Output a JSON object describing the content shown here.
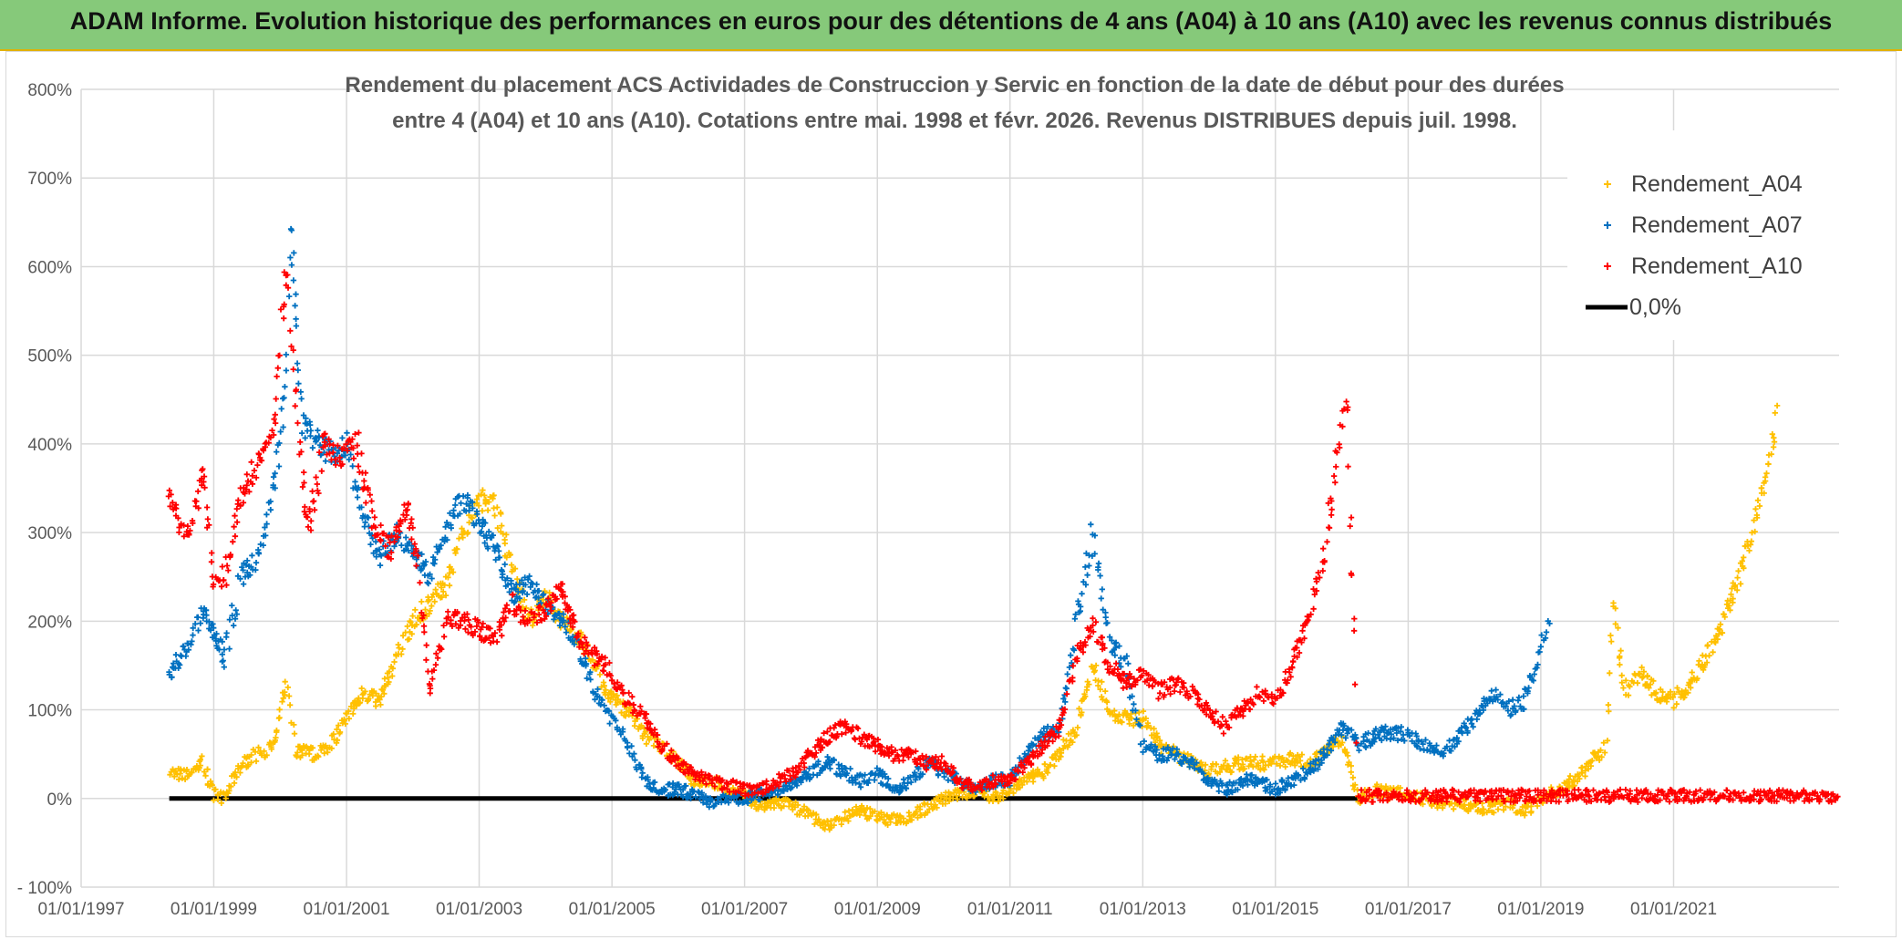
{
  "banner": {
    "title": "ADAM Informe. Evolution historique des performances en euros pour des détentions de 4 ans (A04) à 10 ans (A10) avec les revenus connus distribués"
  },
  "colors": {
    "banner_bg": "#86c97a",
    "A04": "#ffc000",
    "A07": "#0070c0",
    "A10": "#ff0000",
    "zero_line": "#000000",
    "grid": "#d9d9d9"
  },
  "chart_data": {
    "type": "scatter",
    "title_lines": [
      "Rendement du placement ACS Actividades de Construccion y Servic en fonction de la date de début pour des durées",
      "entre 4 (A04) et 10 ans (A10). Cotations entre mai. 1998 et févr. 2026. Revenus DISTRIBUES depuis juil. 1998."
    ],
    "x_axis": {
      "type": "date",
      "min": "1997-01-01",
      "max": "2023-07-01",
      "tick_labels": [
        "01/01/1997",
        "01/01/1999",
        "01/01/2001",
        "01/01/2003",
        "01/01/2005",
        "01/01/2007",
        "01/01/2009",
        "01/01/2011",
        "01/01/2013",
        "01/01/2015",
        "01/01/2017",
        "01/01/2019",
        "01/01/2021"
      ]
    },
    "y_axis": {
      "min": -100,
      "max": 800,
      "step": 100,
      "tick_labels": [
        "- 100%",
        "0%",
        "100%",
        "200%",
        "300%",
        "400%",
        "500%",
        "600%",
        "700%",
        "800%"
      ]
    },
    "legend_position": "top-right",
    "series": [
      {
        "name": "Rendement_A04",
        "marker": "plus",
        "color_key": "A04",
        "points": [
          [
            "1998-05-01",
            30
          ],
          [
            "1998-08-01",
            25
          ],
          [
            "1998-11-01",
            40
          ],
          [
            "1999-01-01",
            5
          ],
          [
            "1999-03-01",
            0
          ],
          [
            "1999-06-01",
            40
          ],
          [
            "1999-09-01",
            50
          ],
          [
            "1999-12-01",
            60
          ],
          [
            "2000-02-01",
            130
          ],
          [
            "2000-04-01",
            55
          ],
          [
            "2000-07-01",
            50
          ],
          [
            "2000-10-01",
            60
          ],
          [
            "2001-01-01",
            90
          ],
          [
            "2001-04-01",
            120
          ],
          [
            "2001-07-01",
            110
          ],
          [
            "2001-10-01",
            160
          ],
          [
            "2002-01-01",
            200
          ],
          [
            "2002-04-01",
            220
          ],
          [
            "2002-07-01",
            240
          ],
          [
            "2002-10-01",
            300
          ],
          [
            "2003-01-01",
            340
          ],
          [
            "2003-04-01",
            330
          ],
          [
            "2003-07-01",
            260
          ],
          [
            "2003-10-01",
            200
          ],
          [
            "2004-01-01",
            230
          ],
          [
            "2004-04-01",
            200
          ],
          [
            "2004-07-01",
            180
          ],
          [
            "2004-10-01",
            150
          ],
          [
            "2005-01-01",
            110
          ],
          [
            "2005-04-01",
            100
          ],
          [
            "2005-07-01",
            70
          ],
          [
            "2005-10-01",
            60
          ],
          [
            "2006-01-01",
            40
          ],
          [
            "2006-04-01",
            20
          ],
          [
            "2006-07-01",
            20
          ],
          [
            "2006-10-01",
            10
          ],
          [
            "2007-01-01",
            5
          ],
          [
            "2007-04-01",
            -10
          ],
          [
            "2007-07-01",
            -5
          ],
          [
            "2007-10-01",
            -10
          ],
          [
            "2008-01-01",
            -20
          ],
          [
            "2008-04-01",
            -30
          ],
          [
            "2008-07-01",
            -20
          ],
          [
            "2008-10-01",
            -15
          ],
          [
            "2009-01-01",
            -20
          ],
          [
            "2009-04-01",
            -25
          ],
          [
            "2009-07-01",
            -20
          ],
          [
            "2009-10-01",
            -10
          ],
          [
            "2010-01-01",
            0
          ],
          [
            "2010-04-01",
            5
          ],
          [
            "2010-07-01",
            10
          ],
          [
            "2010-10-01",
            0
          ],
          [
            "2011-01-01",
            10
          ],
          [
            "2011-04-01",
            20
          ],
          [
            "2011-07-01",
            30
          ],
          [
            "2011-10-01",
            50
          ],
          [
            "2012-01-01",
            80
          ],
          [
            "2012-04-01",
            150
          ],
          [
            "2012-07-01",
            100
          ],
          [
            "2012-10-01",
            90
          ],
          [
            "2013-01-01",
            90
          ],
          [
            "2013-04-01",
            60
          ],
          [
            "2013-07-01",
            50
          ],
          [
            "2013-10-01",
            40
          ],
          [
            "2014-01-01",
            30
          ],
          [
            "2014-04-01",
            35
          ],
          [
            "2014-07-01",
            40
          ],
          [
            "2014-10-01",
            40
          ],
          [
            "2015-01-01",
            40
          ],
          [
            "2015-04-01",
            45
          ],
          [
            "2015-07-01",
            40
          ],
          [
            "2015-10-01",
            50
          ],
          [
            "2016-01-01",
            70
          ],
          [
            "2016-04-01",
            0
          ],
          [
            "2016-07-01",
            10
          ],
          [
            "2016-10-01",
            5
          ],
          [
            "2017-01-01",
            5
          ],
          [
            "2017-04-01",
            0
          ],
          [
            "2017-07-01",
            -5
          ],
          [
            "2017-10-01",
            -5
          ],
          [
            "2018-01-01",
            -10
          ],
          [
            "2018-04-01",
            -10
          ],
          [
            "2018-07-01",
            -5
          ],
          [
            "2018-10-01",
            -15
          ],
          [
            "2019-01-01",
            0
          ],
          [
            "2019-04-01",
            10
          ],
          [
            "2019-07-01",
            20
          ],
          [
            "2019-10-01",
            40
          ],
          [
            "2020-01-01",
            60
          ],
          [
            "2020-02-01",
            230
          ],
          [
            "2020-04-01",
            120
          ],
          [
            "2020-07-01",
            140
          ],
          [
            "2020-10-01",
            120
          ],
          [
            "2021-01-01",
            110
          ],
          [
            "2021-04-01",
            130
          ],
          [
            "2021-07-01",
            160
          ],
          [
            "2021-10-01",
            200
          ],
          [
            "2022-01-01",
            250
          ],
          [
            "2022-04-01",
            320
          ],
          [
            "2022-07-01",
            400
          ],
          [
            "2022-08-01",
            440
          ]
        ]
      },
      {
        "name": "Rendement_A07",
        "marker": "plus",
        "color_key": "A07",
        "points": [
          [
            "1998-05-01",
            140
          ],
          [
            "1998-08-01",
            170
          ],
          [
            "1998-11-01",
            210
          ],
          [
            "1999-01-01",
            190
          ],
          [
            "1999-03-01",
            160
          ],
          [
            "1999-06-01",
            250
          ],
          [
            "1999-09-01",
            270
          ],
          [
            "1999-12-01",
            350
          ],
          [
            "2000-02-01",
            470
          ],
          [
            "2000-03-01",
            650
          ],
          [
            "2000-05-01",
            420
          ],
          [
            "2000-08-01",
            400
          ],
          [
            "2000-11-01",
            390
          ],
          [
            "2001-01-01",
            400
          ],
          [
            "2001-04-01",
            320
          ],
          [
            "2001-07-01",
            270
          ],
          [
            "2001-10-01",
            300
          ],
          [
            "2002-01-01",
            280
          ],
          [
            "2002-04-01",
            250
          ],
          [
            "2002-07-01",
            300
          ],
          [
            "2002-10-01",
            340
          ],
          [
            "2003-01-01",
            310
          ],
          [
            "2003-04-01",
            280
          ],
          [
            "2003-07-01",
            230
          ],
          [
            "2003-10-01",
            240
          ],
          [
            "2004-01-01",
            220
          ],
          [
            "2004-04-01",
            200
          ],
          [
            "2004-07-01",
            170
          ],
          [
            "2004-10-01",
            120
          ],
          [
            "2005-01-01",
            90
          ],
          [
            "2005-04-01",
            60
          ],
          [
            "2005-07-01",
            20
          ],
          [
            "2005-10-01",
            10
          ],
          [
            "2006-01-01",
            10
          ],
          [
            "2006-04-01",
            5
          ],
          [
            "2006-07-01",
            -5
          ],
          [
            "2006-10-01",
            0
          ],
          [
            "2007-01-01",
            0
          ],
          [
            "2007-04-01",
            5
          ],
          [
            "2007-07-01",
            10
          ],
          [
            "2007-10-01",
            20
          ],
          [
            "2008-01-01",
            30
          ],
          [
            "2008-04-01",
            40
          ],
          [
            "2008-07-01",
            30
          ],
          [
            "2008-10-01",
            20
          ],
          [
            "2009-01-01",
            30
          ],
          [
            "2009-04-01",
            10
          ],
          [
            "2009-07-01",
            20
          ],
          [
            "2009-10-01",
            40
          ],
          [
            "2010-01-01",
            30
          ],
          [
            "2010-04-01",
            20
          ],
          [
            "2010-07-01",
            10
          ],
          [
            "2010-10-01",
            20
          ],
          [
            "2011-01-01",
            20
          ],
          [
            "2011-04-01",
            50
          ],
          [
            "2011-07-01",
            70
          ],
          [
            "2011-10-01",
            80
          ],
          [
            "2012-01-01",
            200
          ],
          [
            "2012-04-01",
            300
          ],
          [
            "2012-07-01",
            180
          ],
          [
            "2012-10-01",
            150
          ],
          [
            "2013-01-01",
            60
          ],
          [
            "2013-04-01",
            50
          ],
          [
            "2013-07-01",
            50
          ],
          [
            "2013-10-01",
            40
          ],
          [
            "2014-01-01",
            20
          ],
          [
            "2014-04-01",
            10
          ],
          [
            "2014-07-01",
            20
          ],
          [
            "2014-10-01",
            20
          ],
          [
            "2015-01-01",
            10
          ],
          [
            "2015-04-01",
            20
          ],
          [
            "2015-07-01",
            30
          ],
          [
            "2015-10-01",
            50
          ],
          [
            "2016-01-01",
            80
          ],
          [
            "2016-04-01",
            60
          ],
          [
            "2016-07-01",
            70
          ],
          [
            "2016-10-01",
            75
          ],
          [
            "2017-01-01",
            70
          ],
          [
            "2017-04-01",
            60
          ],
          [
            "2017-07-01",
            50
          ],
          [
            "2017-10-01",
            70
          ],
          [
            "2018-01-01",
            90
          ],
          [
            "2018-04-01",
            120
          ],
          [
            "2018-07-01",
            100
          ],
          [
            "2018-10-01",
            110
          ],
          [
            "2019-01-01",
            170
          ],
          [
            "2019-03-01",
            210
          ]
        ]
      },
      {
        "name": "Rendement_A10",
        "marker": "plus",
        "color_key": "A10",
        "points": [
          [
            "1998-05-01",
            340
          ],
          [
            "1998-08-01",
            290
          ],
          [
            "1998-11-01",
            360
          ],
          [
            "1999-01-01",
            250
          ],
          [
            "1999-03-01",
            250
          ],
          [
            "1999-06-01",
            340
          ],
          [
            "1999-09-01",
            380
          ],
          [
            "1999-12-01",
            420
          ],
          [
            "2000-02-01",
            600
          ],
          [
            "2000-04-01",
            440
          ],
          [
            "2000-06-01",
            300
          ],
          [
            "2000-09-01",
            400
          ],
          [
            "2000-12-01",
            380
          ],
          [
            "2001-03-01",
            400
          ],
          [
            "2001-06-01",
            310
          ],
          [
            "2001-09-01",
            280
          ],
          [
            "2001-12-01",
            330
          ],
          [
            "2002-02-01",
            260
          ],
          [
            "2002-04-01",
            120
          ],
          [
            "2002-07-01",
            200
          ],
          [
            "2002-10-01",
            200
          ],
          [
            "2003-01-01",
            190
          ],
          [
            "2003-04-01",
            180
          ],
          [
            "2003-07-01",
            220
          ],
          [
            "2003-10-01",
            200
          ],
          [
            "2004-01-01",
            210
          ],
          [
            "2004-04-01",
            240
          ],
          [
            "2004-07-01",
            180
          ],
          [
            "2004-10-01",
            160
          ],
          [
            "2005-01-01",
            140
          ],
          [
            "2005-04-01",
            110
          ],
          [
            "2005-07-01",
            90
          ],
          [
            "2005-10-01",
            60
          ],
          [
            "2006-01-01",
            40
          ],
          [
            "2006-04-01",
            25
          ],
          [
            "2006-07-01",
            20
          ],
          [
            "2006-10-01",
            15
          ],
          [
            "2007-01-01",
            10
          ],
          [
            "2007-04-01",
            10
          ],
          [
            "2007-07-01",
            20
          ],
          [
            "2007-10-01",
            30
          ],
          [
            "2008-01-01",
            50
          ],
          [
            "2008-04-01",
            70
          ],
          [
            "2008-07-01",
            80
          ],
          [
            "2008-10-01",
            70
          ],
          [
            "2009-01-01",
            60
          ],
          [
            "2009-04-01",
            50
          ],
          [
            "2009-07-01",
            50
          ],
          [
            "2009-10-01",
            40
          ],
          [
            "2010-01-01",
            40
          ],
          [
            "2010-04-01",
            20
          ],
          [
            "2010-07-01",
            10
          ],
          [
            "2010-10-01",
            20
          ],
          [
            "2011-01-01",
            20
          ],
          [
            "2011-04-01",
            40
          ],
          [
            "2011-07-01",
            60
          ],
          [
            "2011-10-01",
            80
          ],
          [
            "2012-01-01",
            160
          ],
          [
            "2012-04-01",
            200
          ],
          [
            "2012-07-01",
            150
          ],
          [
            "2012-10-01",
            130
          ],
          [
            "2013-01-01",
            140
          ],
          [
            "2013-04-01",
            120
          ],
          [
            "2013-07-01",
            130
          ],
          [
            "2013-10-01",
            120
          ],
          [
            "2014-01-01",
            100
          ],
          [
            "2014-04-01",
            80
          ],
          [
            "2014-07-01",
            100
          ],
          [
            "2014-10-01",
            120
          ],
          [
            "2015-01-01",
            110
          ],
          [
            "2015-04-01",
            150
          ],
          [
            "2015-07-01",
            200
          ],
          [
            "2015-10-01",
            280
          ],
          [
            "2015-12-01",
            380
          ],
          [
            "2016-02-01",
            450
          ],
          [
            "2016-04-01",
            3
          ],
          [
            "2023-07-01",
            3
          ]
        ]
      }
    ],
    "zero_line": {
      "name": "0,0%",
      "value": 0,
      "from": "1998-05-01",
      "to": "2016-04-01"
    },
    "legend": [
      {
        "label": "Rendement_A04",
        "type": "marker",
        "color_key": "A04"
      },
      {
        "label": "Rendement_A07",
        "type": "marker",
        "color_key": "A07"
      },
      {
        "label": "Rendement_A10",
        "type": "marker",
        "color_key": "A10"
      },
      {
        "label": "0,0%",
        "type": "line",
        "color_key": "zero_line"
      }
    ]
  }
}
